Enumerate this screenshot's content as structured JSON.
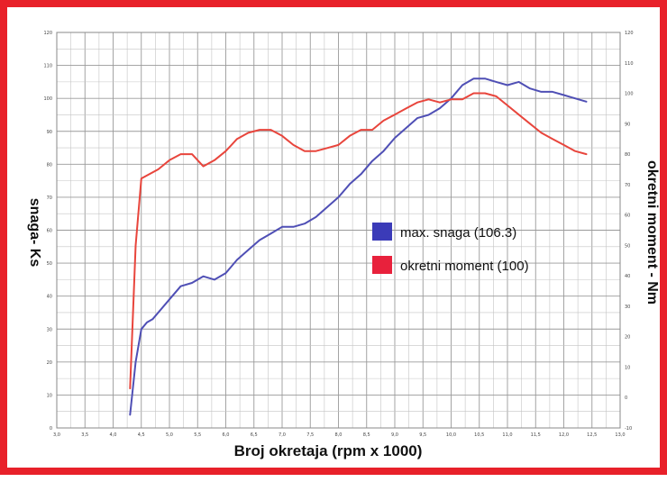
{
  "chart_data": {
    "type": "line",
    "xlabel": "Broj okretaja (rpm x 1000)",
    "ylabel_left": "snaga- Ks",
    "ylabel_right": "okretni moment - Nm",
    "x_ticks": [
      "3,0",
      "3,5",
      "4,0",
      "4,5",
      "5,0",
      "5,5",
      "6,0",
      "6,5",
      "7,0",
      "7,5",
      "8,0",
      "8,5",
      "9,0",
      "9,5",
      "10,0",
      "10,5",
      "11,0",
      "11,5",
      "12,0",
      "12,5",
      "13,0"
    ],
    "y_left_ticks": [
      "0",
      "10",
      "20",
      "30",
      "40",
      "50",
      "60",
      "70",
      "80",
      "90",
      "100",
      "110",
      "120"
    ],
    "y_right_ticks": [
      "-10",
      "0",
      "10",
      "20",
      "30",
      "40",
      "50",
      "60",
      "70",
      "80",
      "90",
      "100",
      "110",
      "120"
    ],
    "xlim": [
      3.0,
      13.0
    ],
    "ylim_left": [
      0,
      120
    ],
    "ylim_right": [
      -10,
      120
    ],
    "grid": true,
    "legend_position": "center-right",
    "series": [
      {
        "name": "max. snaga (106.3)",
        "axis": "left",
        "color": "#4f4fb5",
        "x": [
          4.3,
          4.4,
          4.5,
          4.6,
          4.7,
          4.8,
          5.0,
          5.2,
          5.4,
          5.6,
          5.8,
          6.0,
          6.2,
          6.4,
          6.6,
          6.8,
          7.0,
          7.2,
          7.4,
          7.6,
          7.8,
          8.0,
          8.2,
          8.4,
          8.6,
          8.8,
          9.0,
          9.2,
          9.4,
          9.6,
          9.8,
          10.0,
          10.2,
          10.4,
          10.6,
          10.8,
          11.0,
          11.2,
          11.4,
          11.6,
          11.8,
          12.0,
          12.2,
          12.4
        ],
        "y": [
          4,
          20,
          30,
          32,
          33,
          35,
          39,
          43,
          44,
          46,
          45,
          47,
          51,
          54,
          57,
          59,
          61,
          61,
          62,
          64,
          67,
          70,
          74,
          77,
          81,
          84,
          88,
          91,
          94,
          95,
          97,
          100,
          104,
          106,
          106,
          105,
          104,
          105,
          103,
          102,
          102,
          101,
          100,
          99
        ]
      },
      {
        "name": "okretni moment (100)",
        "axis": "right",
        "color": "#e8453c",
        "x": [
          4.3,
          4.4,
          4.5,
          4.6,
          4.8,
          5.0,
          5.2,
          5.4,
          5.6,
          5.8,
          6.0,
          6.2,
          6.4,
          6.6,
          6.8,
          7.0,
          7.2,
          7.4,
          7.6,
          7.8,
          8.0,
          8.2,
          8.4,
          8.6,
          8.8,
          9.0,
          9.2,
          9.4,
          9.6,
          9.8,
          10.0,
          10.2,
          10.4,
          10.6,
          10.8,
          11.0,
          11.2,
          11.4,
          11.6,
          11.8,
          12.0,
          12.2,
          12.4
        ],
        "y": [
          3,
          50,
          72,
          73,
          75,
          78,
          80,
          80,
          76,
          78,
          81,
          85,
          87,
          88,
          88,
          86,
          83,
          81,
          81,
          82,
          83,
          86,
          88,
          88,
          91,
          93,
          95,
          97,
          98,
          97,
          98,
          98,
          100,
          100,
          99,
          96,
          93,
          90,
          87,
          85,
          83,
          81,
          80
        ]
      }
    ]
  }
}
